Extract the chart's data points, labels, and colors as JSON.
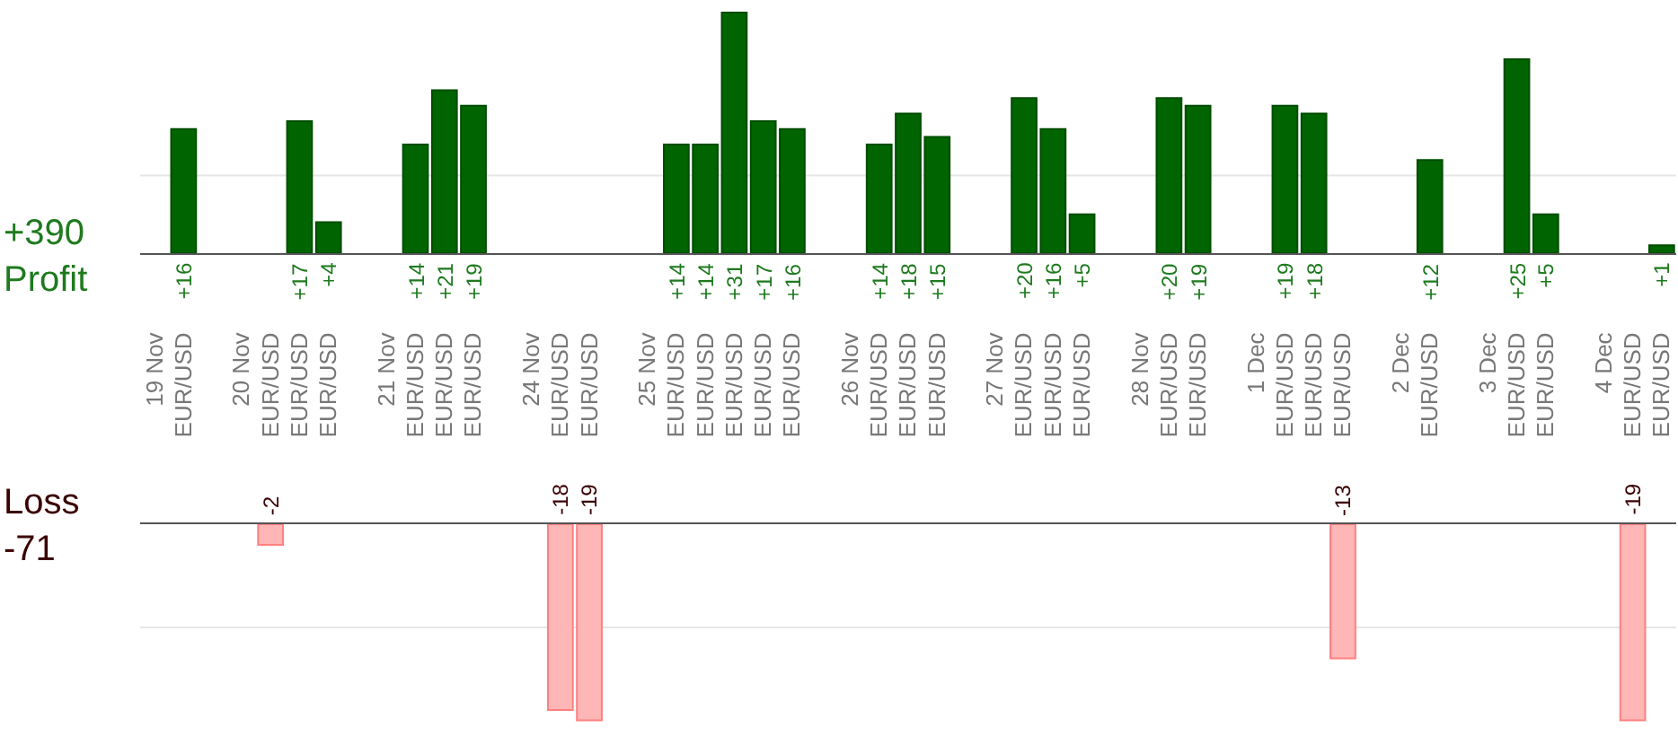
{
  "chart_data": [
    {
      "type": "bar",
      "categories": [
        "19 Nov",
        "EUR/USD",
        null,
        "20 Nov",
        "EUR/USD",
        "EUR/USD",
        "EUR/USD",
        null,
        "21 Nov",
        "EUR/USD",
        "EUR/USD",
        "EUR/USD",
        null,
        "24 Nov",
        "EUR/USD",
        "EUR/USD",
        null,
        "25 Nov",
        "EUR/USD",
        "EUR/USD",
        "EUR/USD",
        "EUR/USD",
        "EUR/USD",
        null,
        "26 Nov",
        "EUR/USD",
        "EUR/USD",
        "EUR/USD",
        null,
        "27 Nov",
        "EUR/USD",
        "EUR/USD",
        "EUR/USD",
        null,
        "28 Nov",
        "EUR/USD",
        "EUR/USD",
        null,
        "1 Dec",
        "EUR/USD",
        "EUR/USD",
        "EUR/USD",
        null,
        "2 Dec",
        "EUR/USD",
        null,
        "3 Dec",
        "EUR/USD",
        "EUR/USD",
        null,
        "4 Dec",
        "EUR/USD",
        "EUR/USD"
      ],
      "values": [
        null,
        16,
        null,
        null,
        null,
        17,
        4,
        null,
        null,
        14,
        21,
        19,
        null,
        null,
        null,
        null,
        null,
        null,
        14,
        14,
        31,
        17,
        16,
        null,
        null,
        14,
        18,
        15,
        null,
        null,
        20,
        16,
        5,
        null,
        null,
        20,
        19,
        null,
        null,
        19,
        18,
        null,
        null,
        null,
        12,
        null,
        null,
        25,
        5,
        null,
        null,
        null,
        1
      ],
      "value_labels": [
        null,
        "+16",
        null,
        null,
        null,
        "+17",
        "+4",
        null,
        null,
        "+14",
        "+21",
        "+19",
        null,
        null,
        null,
        null,
        null,
        null,
        "+14",
        "+14",
        "+31",
        "+17",
        "+16",
        null,
        null,
        "+14",
        "+18",
        "+15",
        null,
        null,
        "+20",
        "+16",
        "+5",
        null,
        null,
        "+20",
        "+19",
        null,
        null,
        "+19",
        "+18",
        null,
        null,
        null,
        "+12",
        null,
        null,
        "+25",
        "+5",
        null,
        null,
        null,
        "+1"
      ],
      "color": "#006400",
      "ref_lines": [
        {
          "axis": "y",
          "value": 10,
          "color": "#e6e6e6"
        }
      ],
      "tick_labels": "x",
      "annotations": [
        "+390",
        "Profit"
      ]
    },
    {
      "type": "bar",
      "values": [
        null,
        null,
        null,
        null,
        -2,
        null,
        null,
        null,
        null,
        null,
        null,
        null,
        null,
        null,
        -18,
        -19,
        null,
        null,
        null,
        null,
        null,
        null,
        null,
        null,
        null,
        null,
        null,
        null,
        null,
        null,
        null,
        null,
        null,
        null,
        null,
        null,
        null,
        null,
        null,
        null,
        null,
        -13,
        null,
        null,
        null,
        null,
        null,
        null,
        null,
        null,
        null,
        -19,
        null
      ],
      "value_labels": [
        null,
        null,
        null,
        null,
        "-2",
        null,
        null,
        null,
        null,
        null,
        null,
        null,
        null,
        null,
        "-18",
        "-19",
        null,
        null,
        null,
        null,
        null,
        null,
        null,
        null,
        null,
        null,
        null,
        null,
        null,
        null,
        null,
        null,
        null,
        null,
        null,
        null,
        null,
        null,
        null,
        null,
        null,
        "-13",
        null,
        null,
        null,
        null,
        null,
        null,
        null,
        null,
        null,
        "-19",
        null
      ],
      "color": "#ffb6b6",
      "ref_lines": [
        {
          "axis": "y",
          "value": -10,
          "color": "#e6e6e6"
        }
      ],
      "tick_labels": false,
      "annotations": [
        "Loss",
        "-71"
      ]
    }
  ]
}
